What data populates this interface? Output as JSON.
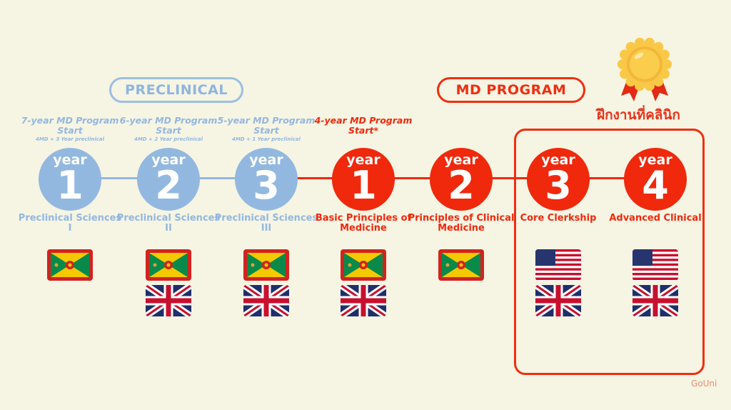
{
  "headers": {
    "preclinical": "PRECLINICAL",
    "md_program": "MD PROGRAM",
    "clinical_training": "ฝึกงานที่คลินิก"
  },
  "colors": {
    "preclinical": "#93b8e0",
    "md": "#f0290c",
    "background": "#f6f4e3"
  },
  "logo": "GoUni",
  "steps": [
    {
      "phase": "preclinical",
      "start_title": "7-year MD Program Start",
      "start_sub": "4MD + 3 Year preclinical",
      "year_word": "year",
      "number": "1",
      "label": "Preclinical Sciences I",
      "flags": [
        "grenada"
      ]
    },
    {
      "phase": "preclinical",
      "start_title": "6-year MD Program Start",
      "start_sub": "4MD + 2 Year preclinical",
      "year_word": "year",
      "number": "2",
      "label": "Preclinical Sciences II",
      "flags": [
        "grenada",
        "uk"
      ]
    },
    {
      "phase": "preclinical",
      "start_title": "5-year MD Program Start",
      "start_sub": "4MD + 1 Year preclinical",
      "year_word": "year",
      "number": "3",
      "label": "Preclinical Sciences III",
      "flags": [
        "grenada",
        "uk"
      ]
    },
    {
      "phase": "md",
      "start_title": "4-year MD Program Start*",
      "start_sub": "",
      "year_word": "year",
      "number": "1",
      "label": "Basic Principles of Medicine",
      "flags": [
        "grenada",
        "uk"
      ]
    },
    {
      "phase": "md",
      "start_title": "",
      "start_sub": "",
      "year_word": "year",
      "number": "2",
      "label": "Principles of Clinical Medicine",
      "flags": [
        "grenada"
      ]
    },
    {
      "phase": "md",
      "start_title": "",
      "start_sub": "",
      "year_word": "year",
      "number": "3",
      "label": "Core Clerkship",
      "flags": [
        "usa",
        "uk"
      ]
    },
    {
      "phase": "md",
      "start_title": "",
      "start_sub": "",
      "year_word": "year",
      "number": "4",
      "label": "Advanced Clinical",
      "flags": [
        "usa",
        "uk"
      ]
    }
  ]
}
